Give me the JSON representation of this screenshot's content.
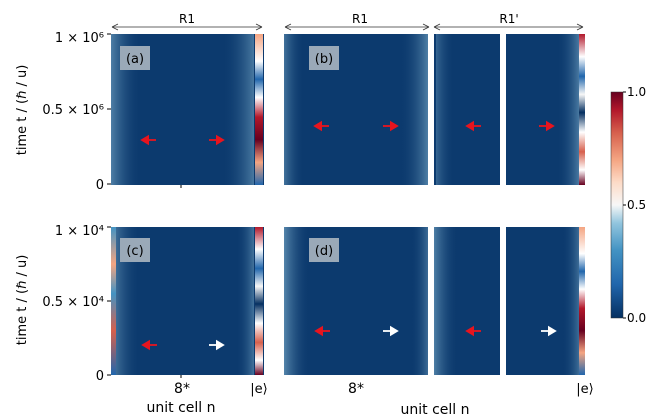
{
  "chart_data": [
    {
      "type": "heatmap",
      "panel_label": "(a)",
      "region_labels": [
        "R1"
      ],
      "ylim": [
        0,
        1000000
      ],
      "yticks": [
        "0",
        "0.5 × 10⁶",
        "1 × 10⁶"
      ],
      "arrows": [
        "left-red",
        "right-red"
      ]
    },
    {
      "type": "heatmap",
      "panel_label": "(b)",
      "region_labels": [
        "R1",
        "R1'"
      ],
      "ylim": [
        0,
        1000000
      ],
      "arrows": [
        "left-red",
        "right-red",
        "left-red",
        "right-red"
      ]
    },
    {
      "type": "heatmap",
      "panel_label": "(c)",
      "ylim": [
        0,
        10000
      ],
      "yticks": [
        "0",
        "0.5 × 10⁴",
        "1 × 10⁴"
      ],
      "xtick_labels": [
        "8*",
        "|e⟩"
      ],
      "arrows": [
        "left-red",
        "right-white"
      ]
    },
    {
      "type": "heatmap",
      "panel_label": "(d)",
      "xtick_labels": [
        "8*",
        "|e⟩"
      ],
      "arrows": [
        "left-red",
        "right-white",
        "left-red",
        "right-white"
      ]
    }
  ],
  "axes": {
    "ylabel_top": "time t / (ℏ / u)",
    "ylabel_bottom": "time t / (ℏ / u)",
    "xlabel_left": "unit cell n",
    "xlabel_right": "unit cell n"
  },
  "colorbar": {
    "range": [
      0.0,
      1.0
    ],
    "ticks": [
      "0.0",
      "0.5",
      "1.0"
    ],
    "colormap": "RdBu_r"
  },
  "colors": {
    "background": "#0c3a6e",
    "arrow_red": "#e8141e",
    "arrow_white": "#ffffff",
    "label_box": "#9aa9b8"
  }
}
